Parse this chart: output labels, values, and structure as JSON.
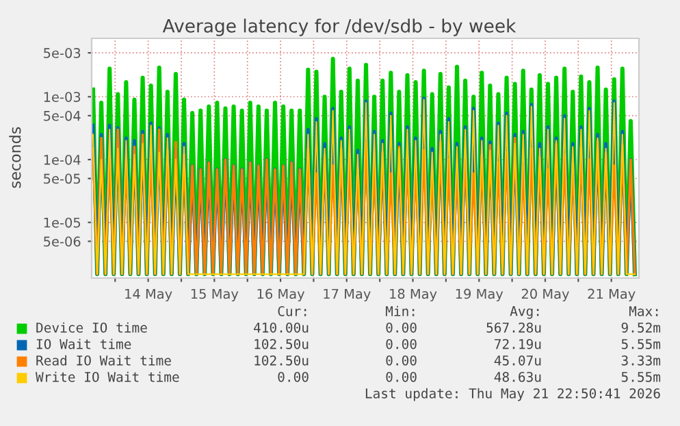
{
  "chart_data": {
    "type": "line",
    "title": "Average latency for /dev/sdb - by week",
    "ylabel": "seconds",
    "log": true,
    "grid": true,
    "legend": "bottom",
    "line_style": "solid",
    "marker": "none",
    "xlim": [
      "2026-05-13T15:30",
      "2026-05-21T22:00"
    ],
    "ylim": [
      1.3e-06,
      0.0085
    ],
    "xticks": [
      {
        "value": "2026-05-14",
        "label": null
      },
      {
        "value": "2026-05-14T12:00",
        "label": "14 May"
      },
      {
        "value": "2026-05-15",
        "label": null
      },
      {
        "value": "2026-05-15T12:00",
        "label": "15 May"
      },
      {
        "value": "2026-05-16",
        "label": null
      },
      {
        "value": "2026-05-16T12:00",
        "label": "16 May"
      },
      {
        "value": "2026-05-17",
        "label": null
      },
      {
        "value": "2026-05-17T12:00",
        "label": "17 May"
      },
      {
        "value": "2026-05-18",
        "label": null
      },
      {
        "value": "2026-05-18T12:00",
        "label": "18 May"
      },
      {
        "value": "2026-05-19",
        "label": null
      },
      {
        "value": "2026-05-19T12:00",
        "label": "19 May"
      },
      {
        "value": "2026-05-20",
        "label": null
      },
      {
        "value": "2026-05-20T12:00",
        "label": "20 May"
      },
      {
        "value": "2026-05-21",
        "label": null
      },
      {
        "value": "2026-05-21T12:00",
        "label": "21 May"
      }
    ],
    "yticks": [
      {
        "value": 5e-06,
        "label": "5e-06"
      },
      {
        "value": 1e-05,
        "label": "1e-05"
      },
      {
        "value": 5e-05,
        "label": "5e-05"
      },
      {
        "value": 0.0001,
        "label": "1e-04"
      },
      {
        "value": 0.0005,
        "label": "5e-04"
      },
      {
        "value": 0.001,
        "label": "1e-03"
      },
      {
        "value": 0.005,
        "label": "5e-03"
      }
    ],
    "x": [
      "2026-05-13T16:00",
      "2026-05-13T17:30",
      "2026-05-13T19:00",
      "2026-05-13T20:30",
      "2026-05-13T22:00",
      "2026-05-13T23:30",
      "2026-05-14T01:00",
      "2026-05-14T02:30",
      "2026-05-14T04:00",
      "2026-05-14T05:30",
      "2026-05-14T07:00",
      "2026-05-14T08:30",
      "2026-05-14T10:00",
      "2026-05-14T11:30",
      "2026-05-14T13:00",
      "2026-05-14T14:30",
      "2026-05-14T16:00",
      "2026-05-14T17:30",
      "2026-05-14T19:00",
      "2026-05-14T20:30",
      "2026-05-14T22:00",
      "2026-05-14T23:30",
      "2026-05-15T01:00",
      "2026-05-15T02:30",
      "2026-05-15T04:00",
      "2026-05-15T05:30",
      "2026-05-15T07:00",
      "2026-05-15T08:30",
      "2026-05-15T10:00",
      "2026-05-15T11:30",
      "2026-05-15T13:00",
      "2026-05-15T14:30",
      "2026-05-15T16:00",
      "2026-05-15T17:30",
      "2026-05-15T19:00",
      "2026-05-15T20:30",
      "2026-05-15T22:00",
      "2026-05-15T23:30",
      "2026-05-16T01:00",
      "2026-05-16T02:30",
      "2026-05-16T04:00",
      "2026-05-16T05:30",
      "2026-05-16T07:00",
      "2026-05-16T08:30",
      "2026-05-16T10:00",
      "2026-05-16T11:30",
      "2026-05-16T13:00",
      "2026-05-16T14:30",
      "2026-05-16T16:00",
      "2026-05-16T17:30",
      "2026-05-16T19:00",
      "2026-05-16T20:30",
      "2026-05-16T22:00",
      "2026-05-16T23:30",
      "2026-05-17T01:00",
      "2026-05-17T02:30",
      "2026-05-17T04:00",
      "2026-05-17T05:30",
      "2026-05-17T07:00",
      "2026-05-17T08:30",
      "2026-05-17T10:00",
      "2026-05-17T11:30",
      "2026-05-17T13:00",
      "2026-05-17T14:30",
      "2026-05-17T16:00",
      "2026-05-17T17:30",
      "2026-05-17T19:00",
      "2026-05-17T20:30",
      "2026-05-17T22:00",
      "2026-05-17T23:30",
      "2026-05-18T01:00",
      "2026-05-18T02:30",
      "2026-05-18T04:00",
      "2026-05-18T05:30",
      "2026-05-18T07:00",
      "2026-05-18T08:30",
      "2026-05-18T10:00",
      "2026-05-18T11:30",
      "2026-05-18T13:00",
      "2026-05-18T14:30",
      "2026-05-18T16:00",
      "2026-05-18T17:30",
      "2026-05-18T19:00",
      "2026-05-18T20:30",
      "2026-05-18T22:00",
      "2026-05-18T23:30",
      "2026-05-19T01:00",
      "2026-05-19T02:30",
      "2026-05-19T04:00",
      "2026-05-19T05:30",
      "2026-05-19T07:00",
      "2026-05-19T08:30",
      "2026-05-19T10:00",
      "2026-05-19T11:30",
      "2026-05-19T13:00",
      "2026-05-19T14:30",
      "2026-05-19T16:00",
      "2026-05-19T17:30",
      "2026-05-19T19:00",
      "2026-05-19T20:30",
      "2026-05-19T22:00",
      "2026-05-19T23:30",
      "2026-05-20T01:00",
      "2026-05-20T02:30",
      "2026-05-20T04:00",
      "2026-05-20T05:30",
      "2026-05-20T07:00",
      "2026-05-20T08:30",
      "2026-05-20T10:00",
      "2026-05-20T11:30",
      "2026-05-20T13:00",
      "2026-05-20T14:30",
      "2026-05-20T16:00",
      "2026-05-20T17:30",
      "2026-05-20T19:00",
      "2026-05-20T20:30",
      "2026-05-20T22:00",
      "2026-05-20T23:30",
      "2026-05-21T01:00",
      "2026-05-21T02:30",
      "2026-05-21T04:00",
      "2026-05-21T05:30",
      "2026-05-21T07:00",
      "2026-05-21T08:30",
      "2026-05-21T10:00",
      "2026-05-21T11:30",
      "2026-05-21T13:00",
      "2026-05-21T14:30",
      "2026-05-21T16:00",
      "2026-05-21T17:30",
      "2026-05-21T19:00",
      "2026-05-21T20:30"
    ],
    "series": [
      {
        "name": "Device IO time",
        "color": "#00cc00",
        "values": [
          0.0013,
          1.5e-06,
          0.0008,
          1.5e-06,
          0.0028,
          1.5e-06,
          0.0011,
          1.5e-06,
          0.0017,
          1.5e-06,
          0.0009,
          1.5e-06,
          0.002,
          1.5e-06,
          0.0015,
          1.5e-06,
          0.0029,
          1.5e-06,
          0.0012,
          1.5e-06,
          0.0023,
          1.5e-06,
          0.0009,
          1.5e-06,
          0.00055,
          1.5e-06,
          0.0006,
          1.5e-06,
          0.0007,
          1.5e-06,
          0.0008,
          1.5e-06,
          0.00065,
          1.5e-06,
          0.0007,
          1.5e-06,
          0.0006,
          1.5e-06,
          0.0008,
          1.5e-06,
          0.0007,
          1.5e-06,
          0.0006,
          1.5e-06,
          0.0008,
          1.5e-06,
          0.0007,
          1.5e-06,
          0.0006,
          1.5e-06,
          0.0006,
          1.5e-06,
          0.0027,
          1.5e-06,
          0.0025,
          1.5e-06,
          0.001,
          1.5e-06,
          0.004,
          1.5e-06,
          0.0012,
          1.5e-06,
          0.0028,
          1.5e-06,
          0.0018,
          1.5e-06,
          0.0032,
          1.5e-06,
          0.001,
          1.5e-06,
          0.0018,
          1.5e-06,
          0.0024,
          1.5e-06,
          0.0012,
          1.5e-06,
          0.0022,
          1.5e-06,
          0.0017,
          1.5e-06,
          0.0026,
          1.5e-06,
          0.0011,
          1.5e-06,
          0.0023,
          1.5e-06,
          0.0014,
          1.5e-06,
          0.003,
          1.5e-06,
          0.0018,
          1.5e-06,
          0.001,
          1.5e-06,
          0.0024,
          1.5e-06,
          0.0015,
          1.5e-06,
          0.0011,
          1.5e-06,
          0.002,
          1.5e-06,
          0.0016,
          1.5e-06,
          0.0026,
          1.5e-06,
          0.0013,
          1.5e-06,
          0.0022,
          1.5e-06,
          0.0016,
          1.5e-06,
          0.002,
          1.5e-06,
          0.0028,
          1.5e-06,
          0.0012,
          1.5e-06,
          0.0021,
          1.5e-06,
          0.0017,
          1.5e-06,
          0.0029,
          1.5e-06,
          0.0013,
          1.5e-06,
          0.0019,
          1.5e-06,
          0.0028,
          1.5e-06,
          0.00041,
          1.5e-06
        ]
      },
      {
        "name": "IO Wait time",
        "color": "#0066b3",
        "values": [
          0.00035,
          1.5e-06,
          0.00025,
          1.5e-06,
          0.00035,
          1.5e-06,
          0.00032,
          1.5e-06,
          0.00022,
          1.5e-06,
          0.0002,
          1.5e-06,
          0.00028,
          1.5e-06,
          0.00038,
          1.5e-06,
          0.00032,
          1.5e-06,
          0.00025,
          1.5e-06,
          0.00015,
          1.5e-06,
          0.00018,
          1.5e-06,
          8e-05,
          1.5e-06,
          7e-05,
          1.5e-06,
          9e-05,
          1.5e-06,
          7e-05,
          1.5e-06,
          0.0001,
          1.5e-06,
          8e-05,
          1.5e-06,
          7e-05,
          1.5e-06,
          9e-05,
          1.5e-06,
          8e-05,
          1.5e-06,
          0.0001,
          1.5e-06,
          7e-05,
          1.5e-06,
          8e-05,
          1.5e-06,
          9e-05,
          1.5e-06,
          7e-05,
          1.5e-06,
          0.0003,
          1.5e-06,
          0.00045,
          1.5e-06,
          0.00018,
          1.5e-06,
          0.00065,
          1.5e-06,
          0.00022,
          1.5e-06,
          0.00033,
          1.5e-06,
          0.00014,
          1.5e-06,
          0.00085,
          1.5e-06,
          0.00028,
          1.5e-06,
          0.0002,
          1.5e-06,
          0.00055,
          1.5e-06,
          0.00018,
          1.5e-06,
          0.00033,
          1.5e-06,
          0.00022,
          1.5e-06,
          0.00095,
          1.5e-06,
          0.00015,
          1.5e-06,
          0.00028,
          1.5e-06,
          0.00045,
          1.5e-06,
          0.00018,
          1.5e-06,
          0.00033,
          1.5e-06,
          0.00065,
          1.5e-06,
          0.00022,
          1.5e-06,
          0.00019,
          1.5e-06,
          0.00038,
          1.5e-06,
          0.00055,
          1.5e-06,
          0.00025,
          1.5e-06,
          0.00028,
          1.5e-06,
          0.00075,
          1.5e-06,
          0.00018,
          1.5e-06,
          0.00033,
          1.5e-06,
          0.00022,
          1.5e-06,
          0.0005,
          1.5e-06,
          0.00018,
          1.5e-06,
          0.00033,
          1.5e-06,
          0.00065,
          1.5e-06,
          0.00025,
          1.5e-06,
          0.00018,
          1.5e-06,
          0.00085,
          1.5e-06,
          0.00028,
          1.5e-06,
          0.0001,
          1.5e-06
        ]
      },
      {
        "name": "Read IO Wait time",
        "color": "#ff8000",
        "values": [
          0.00015,
          1.5e-06,
          0.00022,
          1.5e-06,
          0.00012,
          1.5e-06,
          0.0003,
          1.5e-06,
          0.0001,
          1.5e-06,
          0.00016,
          1.5e-06,
          0.00025,
          1.5e-06,
          0.00011,
          1.5e-06,
          0.0003,
          1.5e-06,
          0.00014,
          1.5e-06,
          0.00019,
          1.5e-06,
          0.00012,
          1.5e-06,
          8e-05,
          1.5e-06,
          7e-05,
          1.5e-06,
          9e-05,
          1.5e-06,
          7e-05,
          1.5e-06,
          0.0001,
          1.5e-06,
          8e-05,
          1.5e-06,
          7e-05,
          1.5e-06,
          9e-05,
          1.5e-06,
          8e-05,
          1.5e-06,
          0.0001,
          1.5e-06,
          7e-05,
          1.5e-06,
          8e-05,
          1.5e-06,
          9e-05,
          1.5e-06,
          7e-05,
          1.5e-06,
          0.00015,
          1.5e-06,
          6e-05,
          1.5e-06,
          0.00012,
          1.5e-06,
          8e-05,
          1.5e-06,
          0.00015,
          1.5e-06,
          0.0001,
          1.5e-06,
          7e-05,
          1.5e-06,
          0.00018,
          1.5e-06,
          9e-05,
          1.5e-06,
          0.00013,
          1.5e-06,
          6e-05,
          1.5e-06,
          0.00016,
          1.5e-06,
          0.00011,
          1.5e-06,
          8e-05,
          1.5e-06,
          0.00014,
          1.5e-06,
          7e-05,
          1.5e-06,
          0.00019,
          1.5e-06,
          0.0001,
          1.5e-06,
          8e-05,
          1.5e-06,
          0.00015,
          1.5e-06,
          6e-05,
          1.5e-06,
          0.00012,
          1.5e-06,
          0.00017,
          1.5e-06,
          9e-05,
          1.5e-06,
          0.00013,
          1.5e-06,
          0.00022,
          1.5e-06,
          8e-05,
          1.5e-06,
          0.00015,
          1.5e-06,
          0.00011,
          1.5e-06,
          7e-05,
          1.5e-06,
          0.00018,
          1.5e-06,
          0.00012,
          1.5e-06,
          9e-05,
          1.5e-06,
          0.00016,
          1.5e-06,
          0.0001,
          1.5e-06,
          0.0002,
          1.5e-06,
          0.00013,
          1.5e-06,
          8e-05,
          1.5e-06,
          0.00017,
          1.5e-06,
          0.0001,
          1.5e-06
        ]
      },
      {
        "name": "Write IO Wait time",
        "color": "#ffcc00",
        "values": [
          0.00025,
          1.5e-06,
          0.0001,
          1.5e-06,
          0.0003,
          1.5e-06,
          0.00015,
          1.5e-06,
          0.0002,
          1.5e-06,
          0.00012,
          1.5e-06,
          0.00018,
          1.5e-06,
          0.00035,
          1.5e-06,
          0.00013,
          1.5e-06,
          0.00022,
          1.5e-06,
          0.0001,
          1.5e-06,
          0.00016,
          1.5e-06,
          1.5e-06,
          1.5e-06,
          1.5e-06,
          1.5e-06,
          1.5e-06,
          1.5e-06,
          1.5e-06,
          1.5e-06,
          1.5e-06,
          1.5e-06,
          1.5e-06,
          1.5e-06,
          1.5e-06,
          1.5e-06,
          1.5e-06,
          1.5e-06,
          1.5e-06,
          1.5e-06,
          1.5e-06,
          1.5e-06,
          1.5e-06,
          1.5e-06,
          1.5e-06,
          1.5e-06,
          1.5e-06,
          1.5e-06,
          1.5e-06,
          1.5e-06,
          0.00025,
          1.5e-06,
          0.0004,
          1.5e-06,
          0.00015,
          1.5e-06,
          0.0006,
          1.5e-06,
          0.0002,
          1.5e-06,
          0.0003,
          1.5e-06,
          0.00012,
          1.5e-06,
          0.0008,
          1.5e-06,
          0.00025,
          1.5e-06,
          0.00018,
          1.5e-06,
          0.0005,
          1.5e-06,
          0.00015,
          1.5e-06,
          0.0003,
          1.5e-06,
          0.0002,
          1.5e-06,
          0.0009,
          1.5e-06,
          0.00013,
          1.5e-06,
          0.00025,
          1.5e-06,
          0.0004,
          1.5e-06,
          0.00016,
          1.5e-06,
          0.0003,
          1.5e-06,
          0.0006,
          1.5e-06,
          0.0002,
          1.5e-06,
          0.00014,
          1.5e-06,
          0.00035,
          1.5e-06,
          0.0005,
          1.5e-06,
          0.00018,
          1.5e-06,
          0.00025,
          1.5e-06,
          0.0007,
          1.5e-06,
          0.00015,
          1.5e-06,
          0.0003,
          1.5e-06,
          0.0002,
          1.5e-06,
          0.00045,
          1.5e-06,
          0.00016,
          1.5e-06,
          0.0003,
          1.5e-06,
          0.0006,
          1.5e-06,
          0.00022,
          1.5e-06,
          0.00015,
          1.5e-06,
          0.0008,
          1.5e-06,
          0.00025,
          1.5e-06,
          1.5e-06,
          1.5e-06
        ]
      }
    ],
    "annotations": [
      "Cur:",
      "Min:",
      "Avg:",
      "Max:",
      "410.00u",
      "0.00",
      "567.28u",
      "9.52m",
      "102.50u",
      "0.00",
      "72.19u",
      "5.55m",
      "102.50u",
      "0.00",
      "45.07u",
      "3.33m",
      "0.00",
      "0.00",
      "48.63u",
      "5.55m",
      "Last update: Thu May 21 22:50:41 2026"
    ]
  }
}
